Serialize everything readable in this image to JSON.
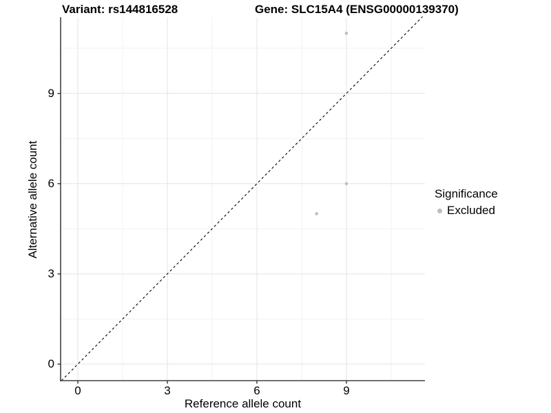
{
  "chart_data": {
    "type": "scatter",
    "title_left": "Variant: rs144816528",
    "title_right": "Gene: SLC15A4 (ENSG00000139370)",
    "xlabel": "Reference allele count",
    "ylabel": "Alternative allele count",
    "xlim": [
      -0.55,
      11.55
    ],
    "ylim": [
      -0.55,
      11.55
    ],
    "x_ticks": [
      0,
      3,
      6,
      9
    ],
    "y_ticks": [
      0,
      3,
      6,
      9
    ],
    "minor_gridlines": [
      1.5,
      4.5,
      7.5,
      10.5
    ],
    "grid": true,
    "identity_line": {
      "type": "y=x",
      "style": "dashed",
      "color": "#000000"
    },
    "series": [
      {
        "name": "Excluded",
        "color": "#bebebe",
        "points": [
          {
            "x": 9,
            "y": 11
          },
          {
            "x": 9,
            "y": 6
          },
          {
            "x": 8,
            "y": 5
          }
        ]
      }
    ],
    "legend": {
      "title": "Significance",
      "position": "right",
      "entries": [
        {
          "label": "Excluded",
          "color": "#bebebe"
        }
      ]
    }
  },
  "colors": {
    "background": "#ffffff",
    "point": "#bebebe",
    "grid_major": "#e3e3e3",
    "grid_minor": "#f1f1f1",
    "axis_line": "#404040",
    "tick_mark": "#333333",
    "text": "#000000"
  }
}
